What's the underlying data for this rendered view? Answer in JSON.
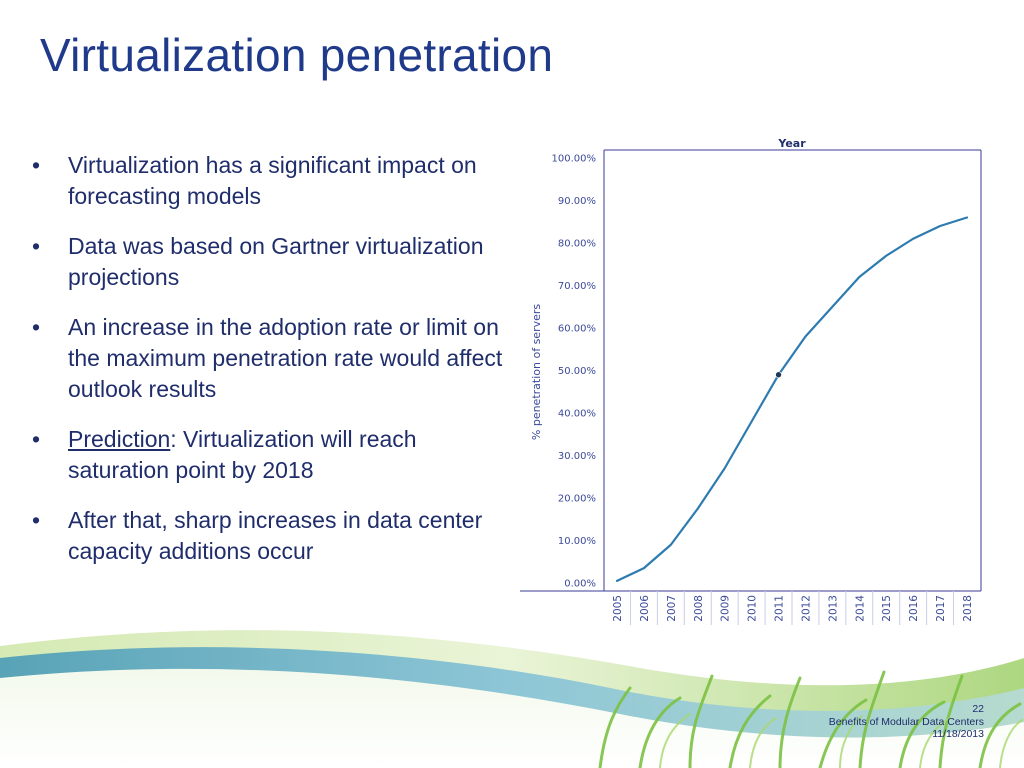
{
  "slide": {
    "title": "Virtualization penetration",
    "bullets": [
      {
        "text": "Virtualization has a significant impact on forecasting models"
      },
      {
        "text": "Data was based on Gartner virtualization projections"
      },
      {
        "text": "An increase in the adoption rate or limit on the maximum penetration rate would affect outlook results"
      },
      {
        "lead": "Prediction",
        "text": ": Virtualization will reach saturation point by 2018"
      },
      {
        "text": "After that, sharp increases in data center capacity additions occur"
      }
    ],
    "bullet_char": "•"
  },
  "footer": {
    "page_number": "22",
    "presentation_title": "Benefits of Modular Data Centers",
    "date": "11/18/2013"
  },
  "colors": {
    "title": "#1f3a8a",
    "body_text": "#1f2d6b",
    "line": "#2e7bb0",
    "axis": "#3b3b9a"
  },
  "chart_data": {
    "type": "line",
    "title": "Year",
    "xlabel": "",
    "ylabel": "% penetration of servers",
    "ylim": [
      0,
      100
    ],
    "yticks": [
      "0.00%",
      "10.00%",
      "20.00%",
      "30.00%",
      "40.00%",
      "50.00%",
      "60.00%",
      "70.00%",
      "80.00%",
      "90.00%",
      "100.00%"
    ],
    "categories": [
      "2005",
      "2006",
      "2007",
      "2008",
      "2009",
      "2010",
      "2011",
      "2012",
      "2013",
      "2014",
      "2015",
      "2016",
      "2017",
      "2018"
    ],
    "series": [
      {
        "values": [
          0.5,
          3.5,
          9,
          17.5,
          27,
          38,
          49,
          58,
          65,
          72,
          77,
          81,
          84,
          86
        ]
      }
    ],
    "highlight_point": {
      "x": "2011",
      "y": 49
    },
    "grid": false
  }
}
